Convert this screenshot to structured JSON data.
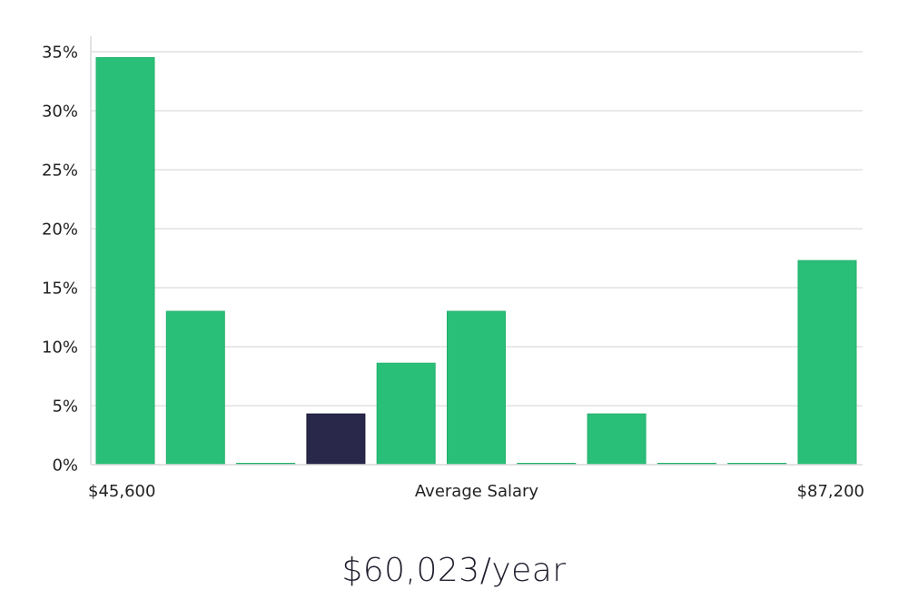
{
  "chart_data": {
    "type": "bar",
    "categories": [
      "1",
      "2",
      "3",
      "4",
      "5",
      "6",
      "7",
      "8",
      "9",
      "10",
      "11"
    ],
    "values": [
      34.5,
      13.0,
      0.0,
      4.3,
      8.6,
      13.0,
      0.0,
      4.3,
      0.0,
      0.0,
      17.3
    ],
    "highlight_index": 3,
    "ylim": [
      0,
      35
    ],
    "yticks": [
      0,
      5,
      10,
      15,
      20,
      25,
      30,
      35
    ],
    "ytick_suffix": "%",
    "x_min_label": "$45,600",
    "x_max_label": "$87,200",
    "xlabel": "Average Salary",
    "grid": true,
    "colors": {
      "bar": "#2abf78",
      "highlight": "#29274a",
      "grid": "#e2e2e2",
      "axis": "#d9d9d9"
    }
  },
  "summary": {
    "salary_text": "$60,023/year"
  }
}
